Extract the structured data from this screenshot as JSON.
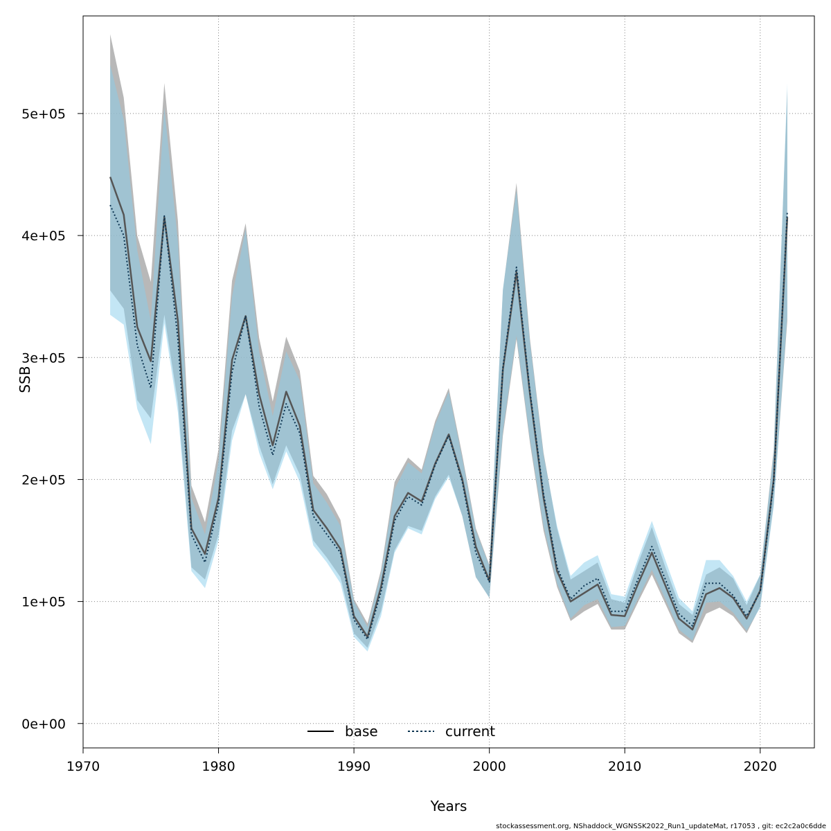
{
  "chart_data": {
    "type": "line",
    "title": "",
    "xlabel": "Years",
    "ylabel": "SSB",
    "xlim": [
      1970,
      2024
    ],
    "ylim": [
      -20000,
      580000
    ],
    "x_ticks": [
      1970,
      1980,
      1990,
      2000,
      2010,
      2020
    ],
    "y_ticks": [
      0,
      100000,
      200000,
      300000,
      400000,
      500000
    ],
    "y_tick_labels": [
      "0e+00",
      "1e+05",
      "2e+05",
      "3e+05",
      "4e+05",
      "5e+05"
    ],
    "grid": true,
    "legend_position": "bottom",
    "colors": {
      "base_line": "#555555",
      "base_band": "#a0a0a0",
      "current_line": "#0b3350",
      "current_band": "#87ceeb"
    },
    "x": [
      1972,
      1973,
      1974,
      1975,
      1976,
      1977,
      1978,
      1979,
      1980,
      1981,
      1982,
      1983,
      1984,
      1985,
      1986,
      1987,
      1988,
      1989,
      1990,
      1991,
      1992,
      1993,
      1994,
      1995,
      1996,
      1997,
      1998,
      1999,
      2000,
      2001,
      2002,
      2003,
      2004,
      2005,
      2006,
      2007,
      2008,
      2009,
      2010,
      2011,
      2012,
      2013,
      2014,
      2015,
      2016,
      2017,
      2018,
      2019,
      2020,
      2021,
      2022
    ],
    "series": [
      {
        "name": "base",
        "values": [
          448000,
          417000,
          325000,
          297000,
          415000,
          330000,
          160000,
          139000,
          185000,
          298000,
          334000,
          270000,
          228000,
          272000,
          244000,
          175000,
          160000,
          143000,
          88000,
          71000,
          112000,
          170000,
          189000,
          182000,
          213000,
          237000,
          200000,
          145000,
          117000,
          290000,
          370000,
          270000,
          185000,
          125000,
          100000,
          107000,
          114000,
          89000,
          88000,
          115000,
          140000,
          113000,
          86000,
          77000,
          106000,
          111000,
          103000,
          86000,
          109000,
          200000,
          415000
        ],
        "lower": [
          355000,
          340000,
          265000,
          250000,
          335000,
          263000,
          128000,
          118000,
          155000,
          240000,
          270000,
          228000,
          196000,
          228000,
          204000,
          150000,
          136000,
          120000,
          74000,
          62000,
          92000,
          142000,
          162000,
          158000,
          186000,
          204000,
          170000,
          120000,
          103000,
          236000,
          315000,
          230000,
          158000,
          112000,
          84000,
          92000,
          98000,
          77000,
          77000,
          100000,
          122000,
          98000,
          74000,
          66000,
          90000,
          95000,
          88000,
          74000,
          96000,
          180000,
          330000
        ],
        "upper": [
          565000,
          513000,
          400000,
          362000,
          525000,
          412000,
          195000,
          165000,
          225000,
          363000,
          410000,
          316000,
          264000,
          317000,
          289000,
          203000,
          188000,
          167000,
          102000,
          82000,
          126000,
          198000,
          218000,
          208000,
          248000,
          275000,
          220000,
          160000,
          130000,
          355000,
          443000,
          315000,
          222000,
          160000,
          118000,
          125000,
          132000,
          102000,
          99000,
          132000,
          161000,
          128000,
          98000,
          89000,
          122000,
          128000,
          119000,
          97000,
          122000,
          225000,
          520000
        ]
      },
      {
        "name": "current",
        "values": [
          425000,
          400000,
          310000,
          275000,
          416000,
          315000,
          155000,
          132000,
          180000,
          288000,
          334000,
          260000,
          220000,
          262000,
          238000,
          170000,
          155000,
          140000,
          85000,
          69000,
          108000,
          166000,
          186000,
          179000,
          212000,
          236000,
          198000,
          140000,
          116000,
          292000,
          374000,
          272000,
          188000,
          128000,
          102000,
          113000,
          119000,
          92000,
          92000,
          119000,
          145000,
          118000,
          90000,
          80000,
          115000,
          115000,
          105000,
          88000,
          108000,
          198000,
          420000
        ],
        "lower": [
          335000,
          327000,
          258000,
          229000,
          328000,
          255000,
          125000,
          111000,
          150000,
          232000,
          270000,
          222000,
          192000,
          223000,
          198000,
          146000,
          132000,
          115000,
          71000,
          59000,
          88000,
          140000,
          160000,
          155000,
          184000,
          202000,
          170000,
          120000,
          103000,
          240000,
          318000,
          233000,
          162000,
          115000,
          86000,
          97000,
          102000,
          79000,
          80000,
          103000,
          126000,
          102000,
          77000,
          68000,
          99000,
          100000,
          91000,
          76000,
          95000,
          178000,
          335000
        ],
        "upper": [
          540000,
          495000,
          388000,
          330000,
          505000,
          395000,
          185000,
          155000,
          215000,
          350000,
          405000,
          305000,
          252000,
          305000,
          281000,
          197000,
          181000,
          162000,
          100000,
          79000,
          123000,
          192000,
          214000,
          205000,
          245000,
          272000,
          217000,
          158000,
          129000,
          356000,
          437000,
          312000,
          220000,
          162000,
          121000,
          132000,
          138000,
          106000,
          104000,
          136000,
          166000,
          134000,
          103000,
          92000,
          134000,
          134000,
          121000,
          100000,
          122000,
          222000,
          525000
        ]
      }
    ],
    "footer": "stockassessment.org, NShaddock_WGNSSK2022_Run1_updateMat, r17053 , git: ec2c2a0c6dde"
  }
}
